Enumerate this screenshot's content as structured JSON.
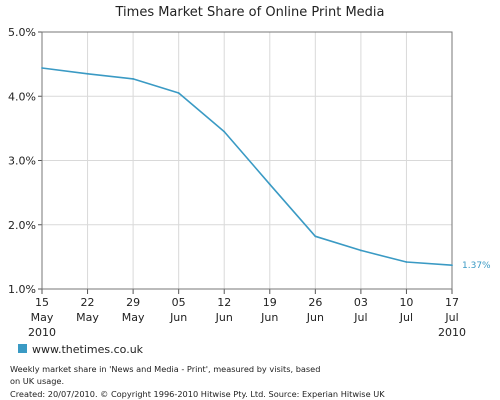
{
  "chart_data": {
    "type": "line",
    "title": "Times Market Share of Online Print Media",
    "categories": [
      [
        "15",
        "May",
        "2010"
      ],
      [
        "22",
        "May",
        ""
      ],
      [
        "29",
        "May",
        ""
      ],
      [
        "05",
        "Jun",
        ""
      ],
      [
        "12",
        "Jun",
        ""
      ],
      [
        "19",
        "Jun",
        ""
      ],
      [
        "26",
        "Jun",
        ""
      ],
      [
        "03",
        "Jul",
        ""
      ],
      [
        "10",
        "Jul",
        ""
      ],
      [
        "17",
        "Jul",
        "2010"
      ]
    ],
    "y_ticks": [
      "1.0%",
      "2.0%",
      "3.0%",
      "4.0%",
      "5.0%"
    ],
    "ylim": [
      1.0,
      5.0
    ],
    "grid": true,
    "legend_position": "bottom-left",
    "series": [
      {
        "name": "www.thetimes.co.uk",
        "color": "#3a9ac4",
        "values": [
          4.44,
          4.35,
          4.27,
          4.05,
          3.45,
          2.63,
          1.82,
          1.6,
          1.42,
          1.37
        ],
        "last_label": "1.37%"
      }
    ],
    "footnotes": [
      "Weekly market share in 'News and Media - Print', measured by visits, based",
      "on UK usage.",
      "Created: 20/07/2010. © Copyright 1996-2010 Hitwise Pty. Ltd.    Source: Experian Hitwise UK"
    ]
  }
}
